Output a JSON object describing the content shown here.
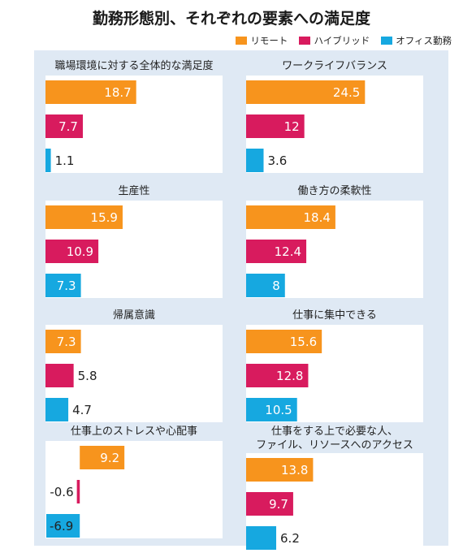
{
  "title": "勤務形態別、それぞれの要素への満足度",
  "legend": [
    {
      "name": "リモート",
      "color": "#f7941d"
    },
    {
      "name": "ハイブリッド",
      "color": "#d81b5e"
    },
    {
      "name": "オフィス勤務",
      "color": "#16a8e0"
    }
  ],
  "chart_data": [
    {
      "type": "bar",
      "orientation": "horizontal",
      "title": "職場環境に対する全体的な満足度",
      "series": [
        "リモート",
        "ハイブリッド",
        "オフィス勤務"
      ],
      "values": [
        18.7,
        7.7,
        1.1
      ]
    },
    {
      "type": "bar",
      "orientation": "horizontal",
      "title": "ワークライフバランス",
      "series": [
        "リモート",
        "ハイブリッド",
        "オフィス勤務"
      ],
      "values": [
        24.5,
        12,
        3.6
      ]
    },
    {
      "type": "bar",
      "orientation": "horizontal",
      "title": "生産性",
      "series": [
        "リモート",
        "ハイブリッド",
        "オフィス勤務"
      ],
      "values": [
        15.9,
        10.9,
        7.3
      ]
    },
    {
      "type": "bar",
      "orientation": "horizontal",
      "title": "働き方の柔軟性",
      "series": [
        "リモート",
        "ハイブリッド",
        "オフィス勤務"
      ],
      "values": [
        18.4,
        12.4,
        8
      ]
    },
    {
      "type": "bar",
      "orientation": "horizontal",
      "title": "帰属意識",
      "series": [
        "リモート",
        "ハイブリッド",
        "オフィス勤務"
      ],
      "values": [
        7.3,
        5.8,
        4.7
      ]
    },
    {
      "type": "bar",
      "orientation": "horizontal",
      "title": "仕事に集中できる",
      "series": [
        "リモート",
        "ハイブリッド",
        "オフィス勤務"
      ],
      "values": [
        15.6,
        12.8,
        10.5
      ]
    },
    {
      "type": "bar",
      "orientation": "horizontal",
      "title": "仕事上のストレスや心配事",
      "series": [
        "リモート",
        "ハイブリッド",
        "オフィス勤務"
      ],
      "values": [
        9.2,
        -0.6,
        -6.9
      ]
    },
    {
      "type": "bar",
      "orientation": "horizontal",
      "title": [
        "仕事をする上で必要な人、",
        "ファイル、リソースへのアクセス"
      ],
      "series": [
        "リモート",
        "ハイブリッド",
        "オフィス勤務"
      ],
      "values": [
        13.8,
        9.7,
        6.2
      ]
    }
  ]
}
